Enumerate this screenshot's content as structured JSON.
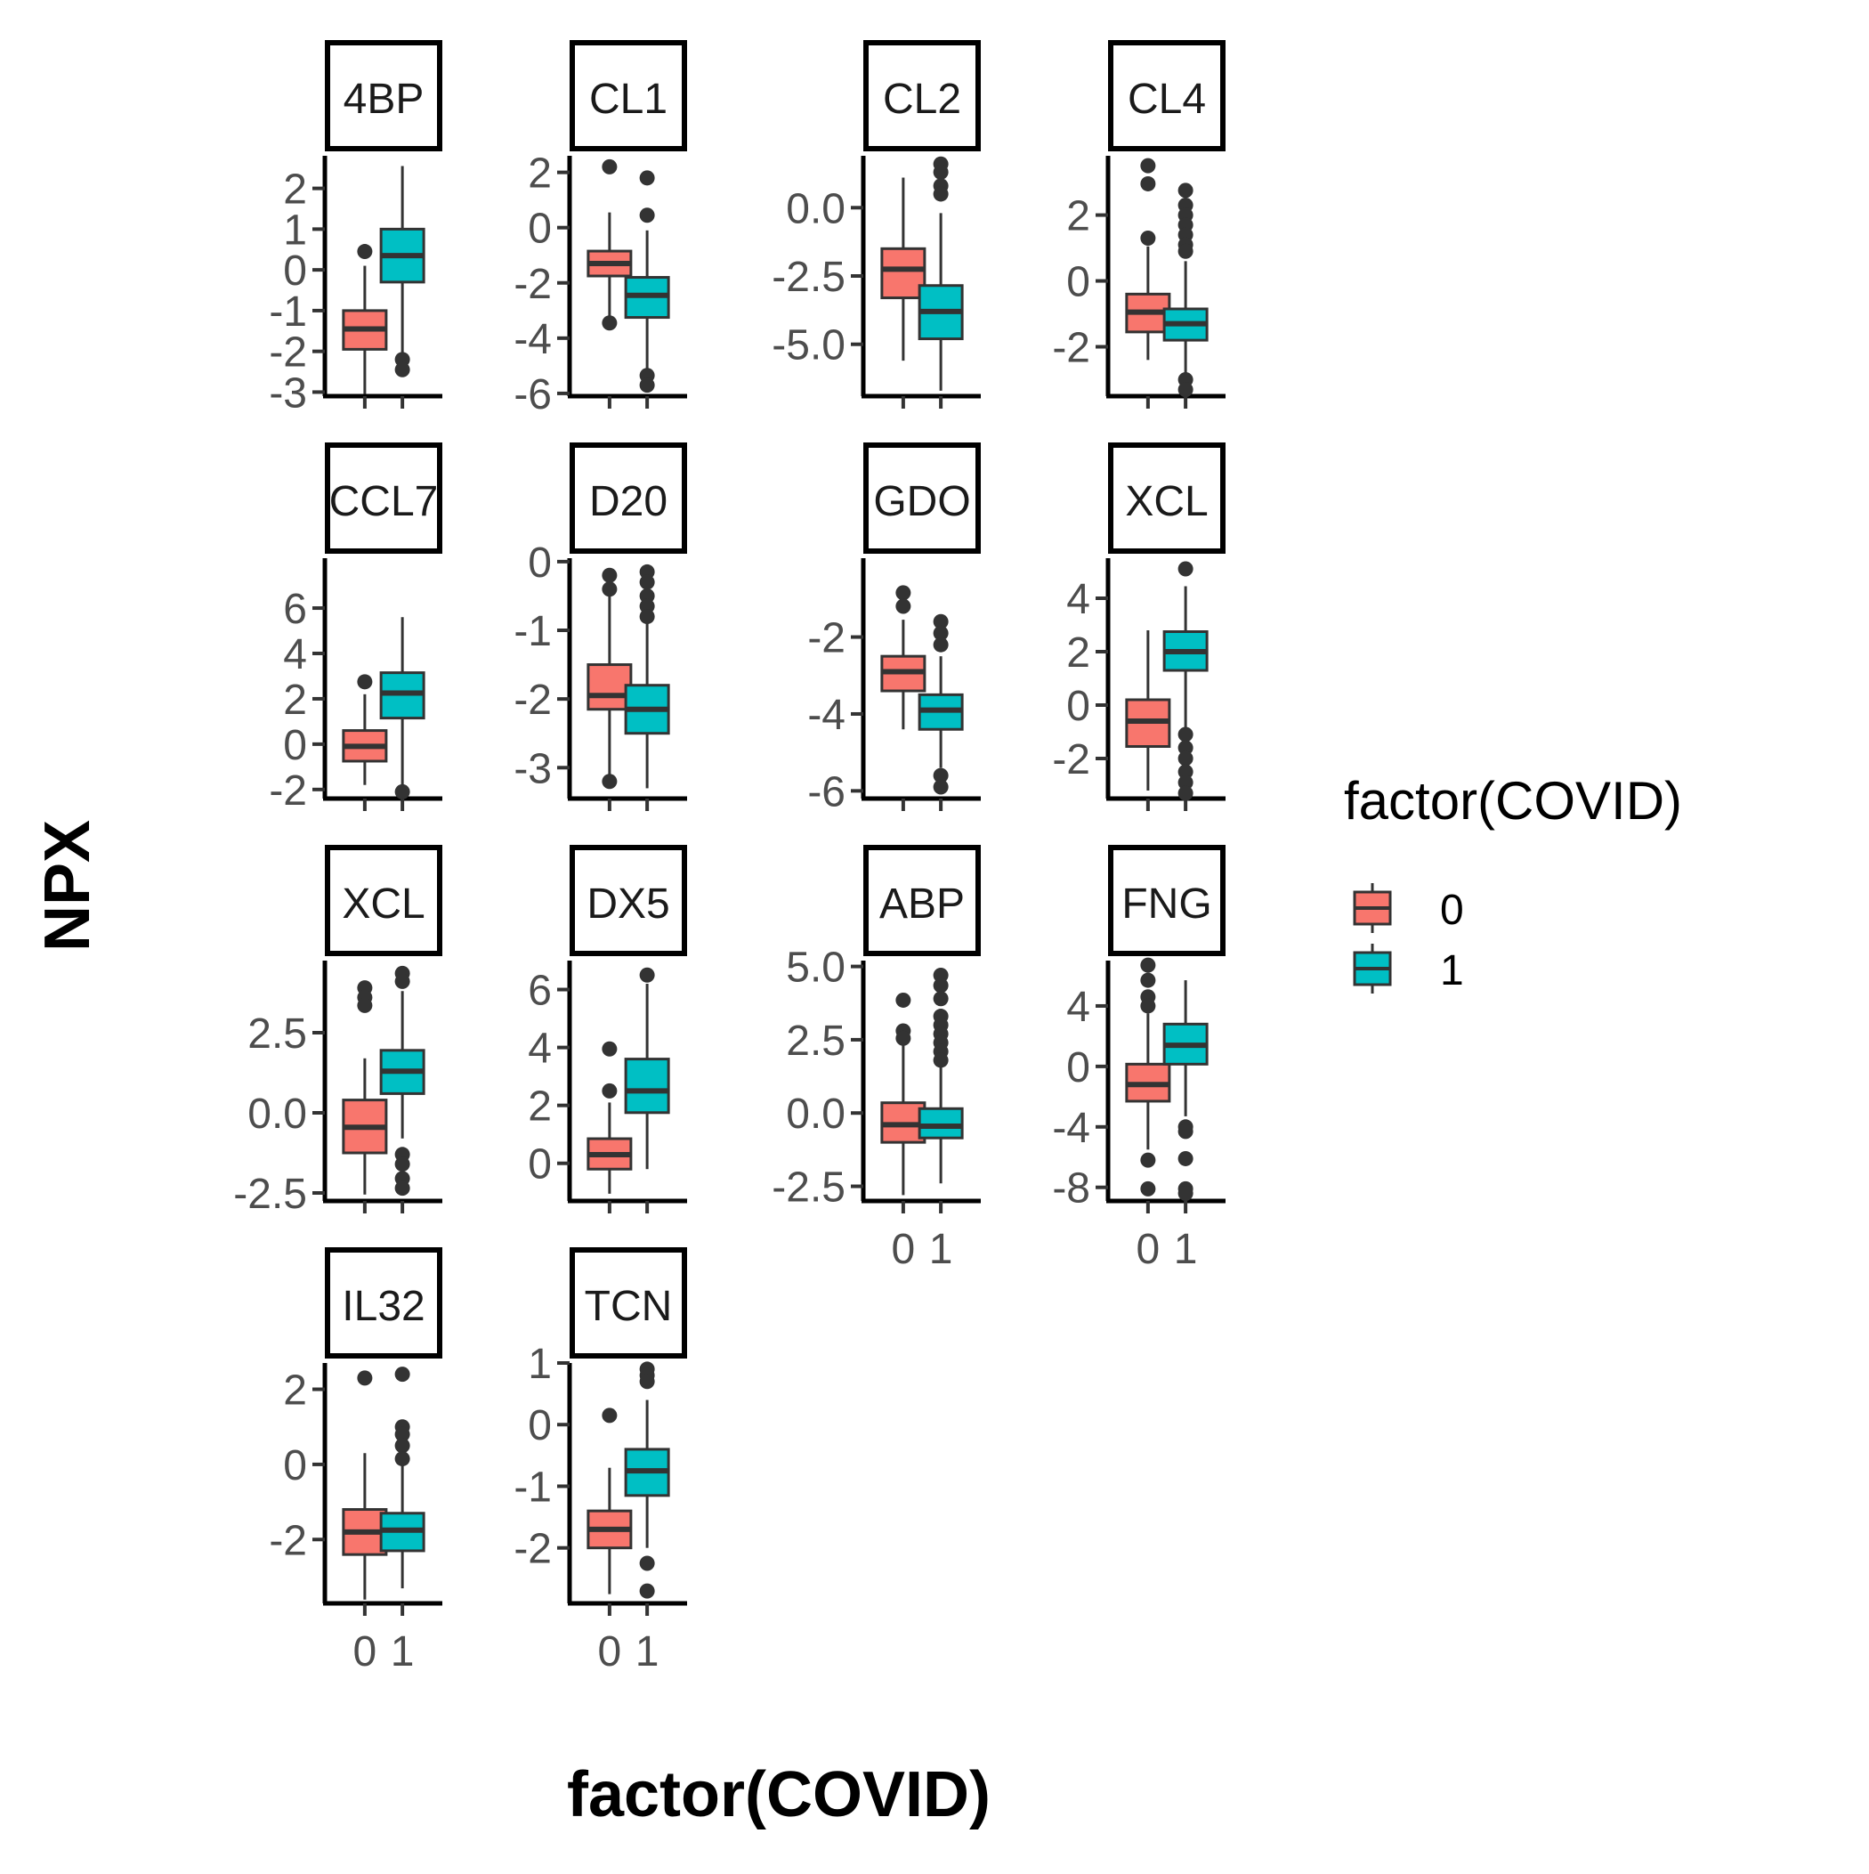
{
  "chart_data": {
    "type": "boxplot",
    "xlabel": "factor(COVID)",
    "ylabel": "NPX",
    "categories": [
      "0",
      "1"
    ],
    "legend": {
      "title": "factor(COVID)",
      "position": "right",
      "entries": [
        {
          "label": "0",
          "color": "#F8766D"
        },
        {
          "label": "1",
          "color": "#00BFC4"
        }
      ]
    },
    "grid": false,
    "panels": [
      {
        "label": "4BP",
        "ylim": [
          -3.1,
          2.8
        ],
        "yticks": [
          {
            "v": 2,
            "t": "2"
          },
          {
            "v": 1,
            "t": "1"
          },
          {
            "v": 0,
            "t": "0"
          },
          {
            "v": -1,
            "t": "-1"
          },
          {
            "v": -2,
            "t": "-2"
          },
          {
            "v": -3,
            "t": "-3"
          }
        ],
        "boxes": [
          {
            "group": "0",
            "q1": -1.95,
            "median": -1.45,
            "q3": -1.0,
            "lower": -3.05,
            "upper": 0.1,
            "outliers": [
              0.45
            ]
          },
          {
            "group": "1",
            "q1": -0.3,
            "median": 0.35,
            "q3": 1.0,
            "lower": -2.05,
            "upper": 2.55,
            "outliers": [
              -2.2,
              -2.45
            ]
          }
        ]
      },
      {
        "label": "CL1",
        "ylim": [
          -6.1,
          2.6
        ],
        "yticks": [
          {
            "v": 2,
            "t": "2"
          },
          {
            "v": 0,
            "t": "0"
          },
          {
            "v": -2,
            "t": "-2"
          },
          {
            "v": -4,
            "t": "-4"
          },
          {
            "v": -6,
            "t": "-6"
          }
        ],
        "boxes": [
          {
            "group": "0",
            "q1": -1.75,
            "median": -1.3,
            "q3": -0.85,
            "lower": -3.25,
            "upper": 0.55,
            "outliers": [
              2.2,
              -3.45
            ]
          },
          {
            "group": "1",
            "q1": -3.25,
            "median": -2.45,
            "q3": -1.8,
            "lower": -5.2,
            "upper": -0.1,
            "outliers": [
              1.8,
              0.45,
              -5.35,
              -5.7
            ]
          }
        ]
      },
      {
        "label": "CL2",
        "ylim": [
          -6.9,
          1.9
        ],
        "yticks": [
          {
            "v": 0,
            "t": "0.0"
          },
          {
            "v": -2.5,
            "t": "-2.5"
          },
          {
            "v": -5,
            "t": "-5.0"
          }
        ],
        "boxes": [
          {
            "group": "0",
            "q1": -3.3,
            "median": -2.25,
            "q3": -1.5,
            "lower": -5.6,
            "upper": 1.1,
            "outliers": []
          },
          {
            "group": "1",
            "q1": -4.8,
            "median": -3.8,
            "q3": -2.85,
            "lower": -6.7,
            "upper": -0.2,
            "outliers": [
              1.6,
              1.3,
              0.8,
              0.5
            ]
          }
        ]
      },
      {
        "label": "CL4",
        "ylim": [
          -3.5,
          3.8
        ],
        "yticks": [
          {
            "v": 2,
            "t": "2"
          },
          {
            "v": 0,
            "t": "0"
          },
          {
            "v": -2,
            "t": "-2"
          }
        ],
        "boxes": [
          {
            "group": "0",
            "q1": -1.55,
            "median": -0.95,
            "q3": -0.4,
            "lower": -2.4,
            "upper": 1.05,
            "outliers": [
              3.5,
              2.95,
              1.3
            ]
          },
          {
            "group": "1",
            "q1": -1.8,
            "median": -1.3,
            "q3": -0.85,
            "lower": -2.85,
            "upper": 0.6,
            "outliers": [
              2.75,
              2.3,
              2.0,
              1.7,
              1.4,
              1.1,
              0.9,
              -3.0,
              -3.3
            ]
          }
        ]
      },
      {
        "label": "CCL7",
        "ylim": [
          -2.4,
          8.2
        ],
        "yticks": [
          {
            "v": 6,
            "t": "6"
          },
          {
            "v": 4,
            "t": "4"
          },
          {
            "v": 2,
            "t": "2"
          },
          {
            "v": 0,
            "t": "0"
          },
          {
            "v": -2,
            "t": "-2"
          }
        ],
        "boxes": [
          {
            "group": "0",
            "q1": -0.75,
            "median": -0.1,
            "q3": 0.6,
            "lower": -1.8,
            "upper": 2.2,
            "outliers": [
              2.75
            ]
          },
          {
            "group": "1",
            "q1": 1.15,
            "median": 2.25,
            "q3": 3.15,
            "lower": -1.9,
            "upper": 5.6,
            "outliers": [
              -2.1
            ]
          }
        ]
      },
      {
        "label": "D20",
        "ylim": [
          -3.45,
          0.05
        ],
        "yticks": [
          {
            "v": 0,
            "t": "0"
          },
          {
            "v": -1,
            "t": "-1"
          },
          {
            "v": -2,
            "t": "-2"
          },
          {
            "v": -3,
            "t": "-3"
          }
        ],
        "boxes": [
          {
            "group": "0",
            "q1": -2.15,
            "median": -1.95,
            "q3": -1.5,
            "lower": -3.1,
            "upper": -0.5,
            "outliers": [
              -0.2,
              -0.4,
              -3.2
            ]
          },
          {
            "group": "1",
            "q1": -2.5,
            "median": -2.15,
            "q3": -1.8,
            "lower": -3.3,
            "upper": -0.9,
            "outliers": [
              -0.15,
              -0.3,
              -0.5,
              -0.65,
              -0.8
            ]
          }
        ]
      },
      {
        "label": "GDO",
        "ylim": [
          -6.2,
          0.05
        ],
        "yticks": [
          {
            "v": -2,
            "t": "-2"
          },
          {
            "v": -4,
            "t": "-4"
          },
          {
            "v": -6,
            "t": "-6"
          }
        ],
        "boxes": [
          {
            "group": "0",
            "q1": -3.4,
            "median": -2.9,
            "q3": -2.5,
            "lower": -4.4,
            "upper": -1.55,
            "outliers": [
              -0.85,
              -1.2
            ]
          },
          {
            "group": "1",
            "q1": -4.4,
            "median": -3.9,
            "q3": -3.5,
            "lower": -5.4,
            "upper": -2.5,
            "outliers": [
              -1.6,
              -1.9,
              -2.2,
              -5.6,
              -5.9
            ]
          }
        ]
      },
      {
        "label": "XCL",
        "ylim": [
          -3.5,
          5.5
        ],
        "yticks": [
          {
            "v": 4,
            "t": "4"
          },
          {
            "v": 2,
            "t": "2"
          },
          {
            "v": 0,
            "t": "0"
          },
          {
            "v": -2,
            "t": "-2"
          }
        ],
        "boxes": [
          {
            "group": "0",
            "q1": -1.55,
            "median": -0.6,
            "q3": 0.2,
            "lower": -3.2,
            "upper": 2.8,
            "outliers": []
          },
          {
            "group": "1",
            "q1": 1.3,
            "median": 2.0,
            "q3": 2.75,
            "lower": -0.9,
            "upper": 4.45,
            "outliers": [
              5.1,
              -1.1,
              -1.6,
              -2.0,
              -2.5,
              -2.9,
              -3.3
            ]
          }
        ]
      },
      {
        "label": "XCL",
        "ylim": [
          -2.75,
          4.75
        ],
        "yticks": [
          {
            "v": 2.5,
            "t": "2.5"
          },
          {
            "v": 0,
            "t": "0.0"
          },
          {
            "v": -2.5,
            "t": "-2.5"
          }
        ],
        "boxes": [
          {
            "group": "0",
            "q1": -1.25,
            "median": -0.45,
            "q3": 0.4,
            "lower": -2.55,
            "upper": 1.7,
            "outliers": [
              3.9,
              3.6,
              3.35
            ]
          },
          {
            "group": "1",
            "q1": 0.6,
            "median": 1.3,
            "q3": 1.95,
            "lower": -0.8,
            "upper": 3.8,
            "outliers": [
              4.35,
              4.1,
              -1.3,
              -1.6,
              -2.05,
              -2.35
            ]
          }
        ]
      },
      {
        "label": "DX5",
        "ylim": [
          -1.3,
          7.0
        ],
        "yticks": [
          {
            "v": 6,
            "t": "6"
          },
          {
            "v": 4,
            "t": "4"
          },
          {
            "v": 2,
            "t": "2"
          },
          {
            "v": 0,
            "t": "0"
          }
        ],
        "boxes": [
          {
            "group": "0",
            "q1": -0.2,
            "median": 0.3,
            "q3": 0.85,
            "lower": -1.05,
            "upper": 2.1,
            "outliers": [
              3.95,
              2.5
            ]
          },
          {
            "group": "1",
            "q1": 1.75,
            "median": 2.5,
            "q3": 3.6,
            "lower": -0.2,
            "upper": 6.2,
            "outliers": [
              6.5
            ]
          }
        ]
      },
      {
        "label": "ABP",
        "ylim": [
          -3.0,
          5.2
        ],
        "yticks": [
          {
            "v": 5,
            "t": "5.0"
          },
          {
            "v": 2.5,
            "t": "2.5"
          },
          {
            "v": 0,
            "t": "0.0"
          },
          {
            "v": -2.5,
            "t": "-2.5"
          }
        ],
        "boxes": [
          {
            "group": "0",
            "q1": -1.0,
            "median": -0.4,
            "q3": 0.35,
            "lower": -2.8,
            "upper": 2.3,
            "outliers": [
              3.85,
              2.8,
              2.55
            ]
          },
          {
            "group": "1",
            "q1": -0.85,
            "median": -0.45,
            "q3": 0.15,
            "lower": -2.4,
            "upper": 1.65,
            "outliers": [
              4.7,
              4.35,
              3.9,
              3.3,
              3.0,
              2.7,
              2.4,
              2.1,
              1.8
            ]
          }
        ]
      },
      {
        "label": "FNG",
        "ylim": [
          -8.9,
          7.0
        ],
        "yticks": [
          {
            "v": 4,
            "t": "4"
          },
          {
            "v": 0,
            "t": "0"
          },
          {
            "v": -4,
            "t": "-4"
          },
          {
            "v": -8,
            "t": "-8"
          }
        ],
        "boxes": [
          {
            "group": "0",
            "q1": -2.3,
            "median": -1.2,
            "q3": 0.15,
            "lower": -5.5,
            "upper": 3.5,
            "outliers": [
              6.7,
              5.7,
              4.6,
              4.0,
              -6.2,
              -8.1
            ]
          },
          {
            "group": "1",
            "q1": 0.15,
            "median": 1.4,
            "q3": 2.8,
            "lower": -3.3,
            "upper": 5.7,
            "outliers": [
              -4.0,
              -4.3,
              -6.1,
              -8.1,
              -8.4
            ]
          }
        ]
      },
      {
        "label": "IL32",
        "ylim": [
          -3.7,
          2.7
        ],
        "yticks": [
          {
            "v": 2,
            "t": "2"
          },
          {
            "v": 0,
            "t": "0"
          },
          {
            "v": -2,
            "t": "-2"
          }
        ],
        "boxes": [
          {
            "group": "0",
            "q1": -2.4,
            "median": -1.8,
            "q3": -1.2,
            "lower": -3.6,
            "upper": 0.3,
            "outliers": [
              2.3
            ]
          },
          {
            "group": "1",
            "q1": -2.3,
            "median": -1.75,
            "q3": -1.3,
            "lower": -3.3,
            "upper": 0.0,
            "outliers": [
              2.4,
              1.0,
              0.8,
              0.5,
              0.15
            ]
          }
        ]
      },
      {
        "label": "TCN",
        "ylim": [
          -2.9,
          1.0
        ],
        "yticks": [
          {
            "v": 1,
            "t": "1"
          },
          {
            "v": 0,
            "t": "0"
          },
          {
            "v": -1,
            "t": "-1"
          },
          {
            "v": -2,
            "t": "-2"
          }
        ],
        "boxes": [
          {
            "group": "0",
            "q1": -2.0,
            "median": -1.7,
            "q3": -1.4,
            "lower": -2.75,
            "upper": -0.7,
            "outliers": [
              0.15
            ]
          },
          {
            "group": "1",
            "q1": -1.15,
            "median": -0.75,
            "q3": -0.4,
            "lower": -2.0,
            "upper": 0.4,
            "outliers": [
              0.9,
              0.8,
              0.7,
              -2.25,
              -2.7
            ]
          }
        ]
      }
    ]
  }
}
